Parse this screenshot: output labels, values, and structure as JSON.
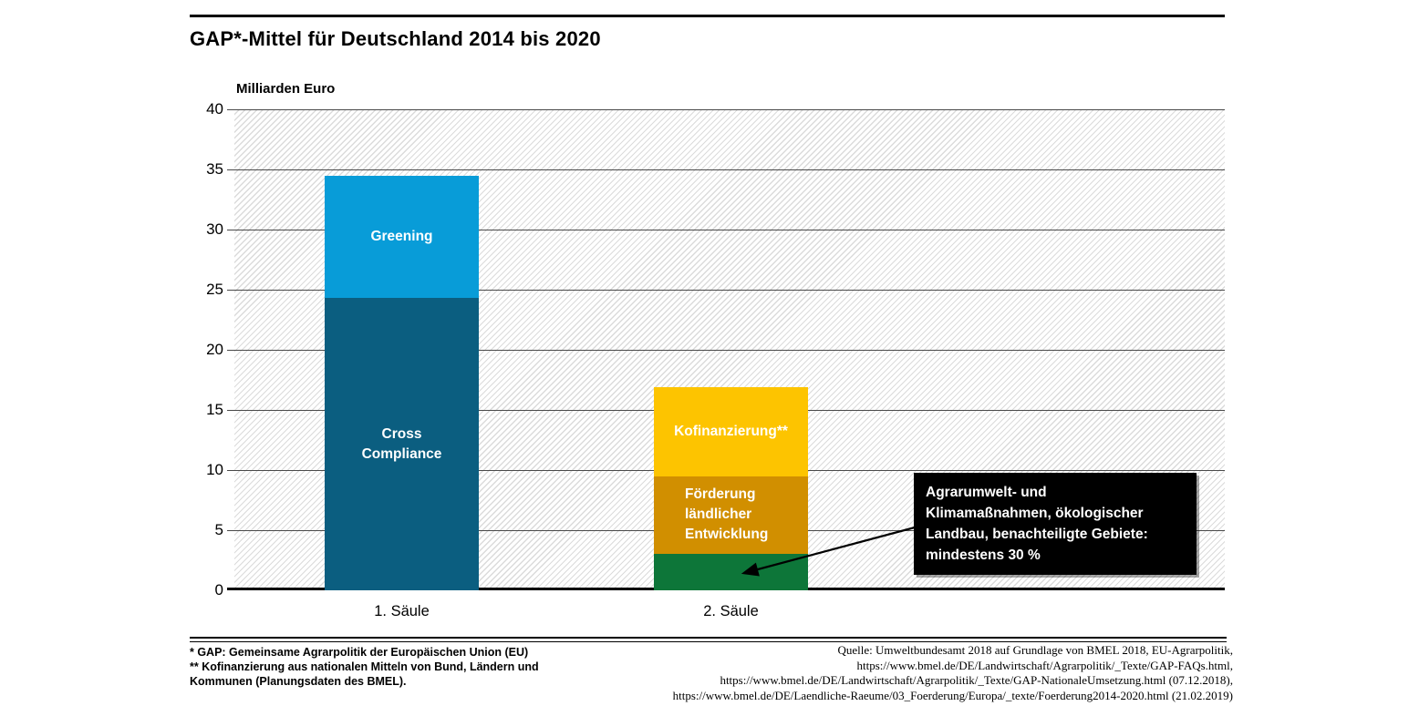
{
  "header": {
    "title": "GAP*-Mittel für Deutschland 2014 bis 2020"
  },
  "chart_data": {
    "type": "bar",
    "stacked": true,
    "title": "GAP*-Mittel für Deutschland 2014 bis 2020",
    "unit_label": "Milliarden Euro",
    "xlabel": "",
    "ylabel": "Milliarden Euro",
    "ylim": [
      0,
      40
    ],
    "yticks": [
      0,
      5,
      10,
      15,
      20,
      25,
      30,
      35,
      40
    ],
    "grid": true,
    "plot_background": "diagonal-hatch",
    "gridline_color": "#4a4a4a",
    "categories": [
      "1. Säule",
      "2. Säule"
    ],
    "bars": [
      {
        "category": "1. Säule",
        "total": 34.5,
        "segments": [
          {
            "name": "Cross Compliance",
            "label_lines": [
              "Cross",
              "Compliance"
            ],
            "value": 24.3,
            "color": "#0b5e80",
            "label_color": "#ffffff",
            "align": "center"
          },
          {
            "name": "Greening",
            "label_lines": [
              "Greening"
            ],
            "value": 10.2,
            "color": "#089cd8",
            "label_color": "#ffffff",
            "align": "center"
          }
        ]
      },
      {
        "category": "2. Säule",
        "total": 16.9,
        "segments": [
          {
            "name": "Agrarumwelt- und Klimamaßnahmen, ökologischer Landbau, benachteiligte Gebiete",
            "label_lines": [],
            "value": 3.0,
            "color": "#0d7639",
            "label_color": "#ffffff",
            "align": "center"
          },
          {
            "name": "Förderung ländlicher Entwicklung",
            "label_lines": [
              "Förderung",
              "ländlicher",
              "Entwicklung"
            ],
            "value": 6.5,
            "color": "#d18f00",
            "label_color": "#ffffff",
            "align": "left"
          },
          {
            "name": "Kofinanzierung",
            "label_lines": [
              "Kofinanzierung**"
            ],
            "value": 7.4,
            "color": "#fdc400",
            "label_color": "#ffffff",
            "align": "center"
          }
        ]
      }
    ]
  },
  "annotation": {
    "lines": [
      "Agrarumwelt- und",
      "Klimamaßnahmen, ökologischer",
      "Landbau, benachteiligte Gebiete:",
      "mindestens 30 %"
    ],
    "background": "#000000",
    "text_color": "#ffffff"
  },
  "footnotes": {
    "lines": [
      "* GAP: Gemeinsame Agrarpolitik der Europäischen Union (EU)",
      "** Kofinanzierung aus nationalen Mitteln von Bund, Ländern und",
      "Kommunen (Planungsdaten des BMEL)."
    ]
  },
  "source": {
    "lines": [
      "Quelle: Umweltbundesamt 2018 auf Grundlage von BMEL 2018, EU-Agrarpolitik,",
      "https://www.bmel.de/DE/Landwirtschaft/Agrarpolitik/_Texte/GAP-FAQs.html,",
      "https://www.bmel.de/DE/Landwirtschaft/Agrarpolitik/_Texte/GAP-NationaleUmsetzung.html (07.12.2018),",
      "https://www.bmel.de/DE/Laendliche-Raeume/03_Foerderung/Europa/_texte/Foerderung2014-2020.html (21.02.2019)"
    ]
  }
}
